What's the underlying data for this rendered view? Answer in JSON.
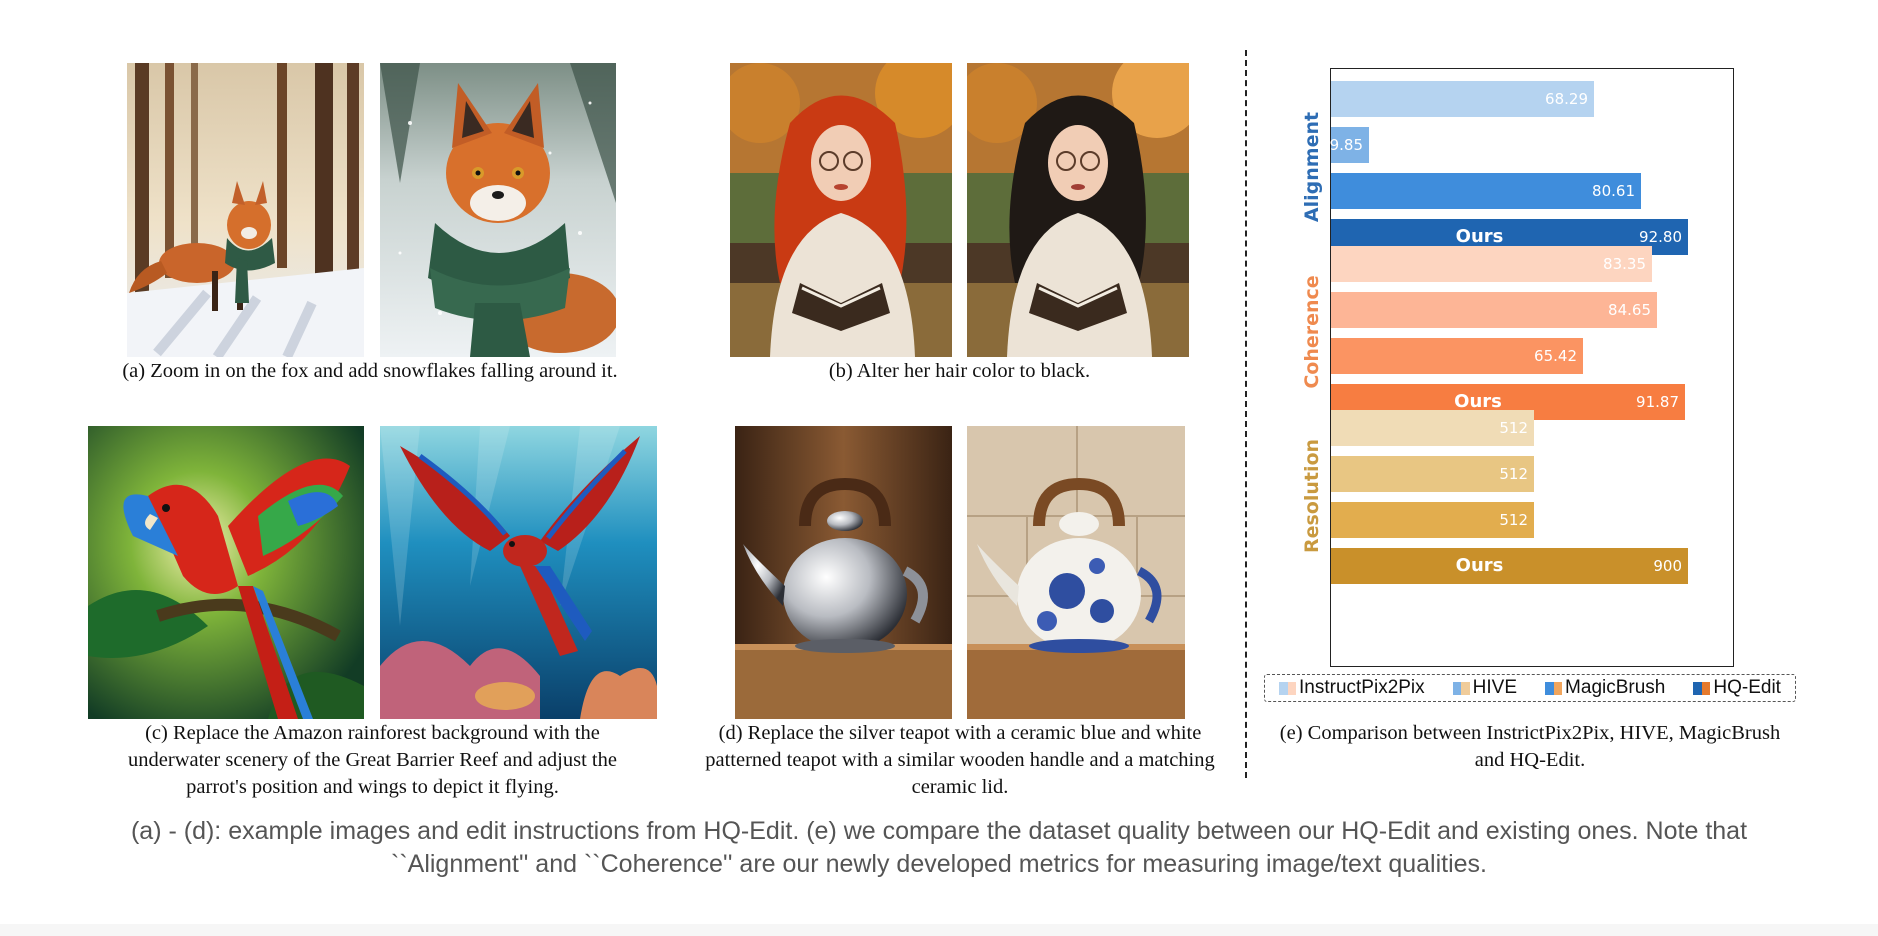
{
  "panels": {
    "a": {
      "caption": "(a) Zoom in on the fox and add snowflakes falling around it."
    },
    "b": {
      "caption": "(b) Alter her hair color to black."
    },
    "c": {
      "caption_lines": [
        "(c) Replace the Amazon rainforest background with the",
        "underwater scenery of the Great Barrier Reef and adjust the",
        "parrot's position and wings to depict it flying."
      ]
    },
    "d": {
      "caption_lines": [
        "(d) Replace the silver teapot with a ceramic blue and white",
        "patterned teapot with a similar wooden handle and a matching",
        "ceramic lid."
      ]
    },
    "e": {
      "caption_lines": [
        "(e) Comparison between InstrictPix2Pix, HIVE, MagicBrush",
        "and HQ-Edit."
      ]
    }
  },
  "chart_data": {
    "type": "bar",
    "orientation": "horizontal",
    "xlim_per_group": {
      "Alignment": [
        0,
        100
      ],
      "Coherence": [
        0,
        100
      ],
      "Resolution": [
        0,
        970
      ]
    },
    "groups": [
      {
        "name": "Alignment",
        "color": "#2e6db4",
        "bars": [
          {
            "series": "InstructPix2Pix",
            "value": 68.29,
            "label": "68.29",
            "color": "#b5d3f0"
          },
          {
            "series": "HIVE",
            "value": 9.85,
            "label": "9.85",
            "color": "#7eb2e6"
          },
          {
            "series": "MagicBrush",
            "value": 80.61,
            "label": "80.61",
            "color": "#3f8ddc"
          },
          {
            "series": "HQ-Edit",
            "value": 92.8,
            "label": "92.80",
            "color": "#1f65b1",
            "ours": true
          }
        ]
      },
      {
        "name": "Coherence",
        "color": "#ef8a4f",
        "bars": [
          {
            "series": "InstructPix2Pix",
            "value": 83.35,
            "label": "83.35",
            "color": "#fdd5c0"
          },
          {
            "series": "HIVE",
            "value": 84.65,
            "label": "84.65",
            "color": "#fdb596"
          },
          {
            "series": "MagicBrush",
            "value": 65.42,
            "label": "65.42",
            "color": "#fb9462"
          },
          {
            "series": "HQ-Edit",
            "value": 91.87,
            "label": "91.87",
            "color": "#f77d41",
            "ours": true
          }
        ]
      },
      {
        "name": "Resolution",
        "color": "#c99a40",
        "bars": [
          {
            "series": "InstructPix2Pix",
            "value": 512,
            "label": "512",
            "color": "#f0dcb6"
          },
          {
            "series": "HIVE",
            "value": 512,
            "label": "512",
            "color": "#e8c683"
          },
          {
            "series": "MagicBrush",
            "value": 512,
            "label": "512",
            "color": "#e2ad4e"
          },
          {
            "series": "HQ-Edit",
            "value": 900,
            "label": "900",
            "color": "#c9902a",
            "ours": true
          }
        ]
      }
    ],
    "ours_label": "Ours",
    "legend": [
      {
        "name": "InstructPix2Pix",
        "colors": [
          "#b5d3f0",
          "#fdd5c0"
        ]
      },
      {
        "name": "HIVE",
        "colors": [
          "#7eb2e6",
          "#f0cc9a"
        ]
      },
      {
        "name": "MagicBrush",
        "colors": [
          "#3f8ddc",
          "#f1a55c"
        ]
      },
      {
        "name": "HQ-Edit",
        "colors": [
          "#1f65b1",
          "#e57a2e"
        ]
      }
    ]
  },
  "main_caption": [
    "(a) - (d): example images and edit instructions from HQ-Edit. (e) we compare the dataset quality between our HQ-Edit and existing ones. Note that",
    "``Alignment'' and ``Coherence'' are our newly developed metrics for measuring image/text qualities."
  ]
}
